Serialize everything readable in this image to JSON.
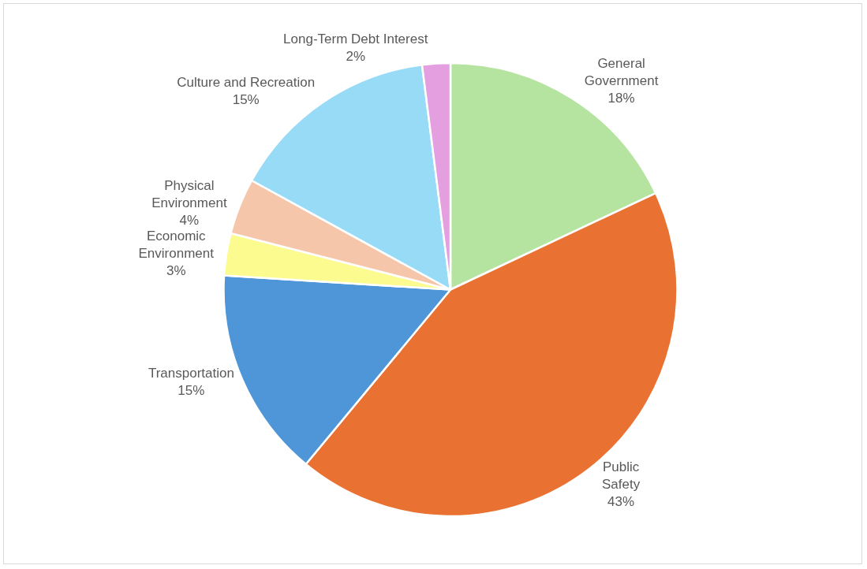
{
  "chart_data": {
    "type": "pie",
    "categories": [
      "General Government",
      "Public Safety",
      "Transportation",
      "Economic Environment",
      "Physical Environment",
      "Culture and Recreation",
      "Long-Term Debt Interest"
    ],
    "values": [
      18,
      43,
      15,
      3,
      4,
      15,
      2
    ],
    "value_labels": [
      "18%",
      "43%",
      "15%",
      "3%",
      "4%",
      "15%",
      "2%"
    ],
    "colors": [
      "#b5e4a0",
      "#e97132",
      "#4f96d9",
      "#fbfb8f",
      "#f5c6aa",
      "#97dbf7",
      "#e49fe0"
    ],
    "legend": false
  }
}
